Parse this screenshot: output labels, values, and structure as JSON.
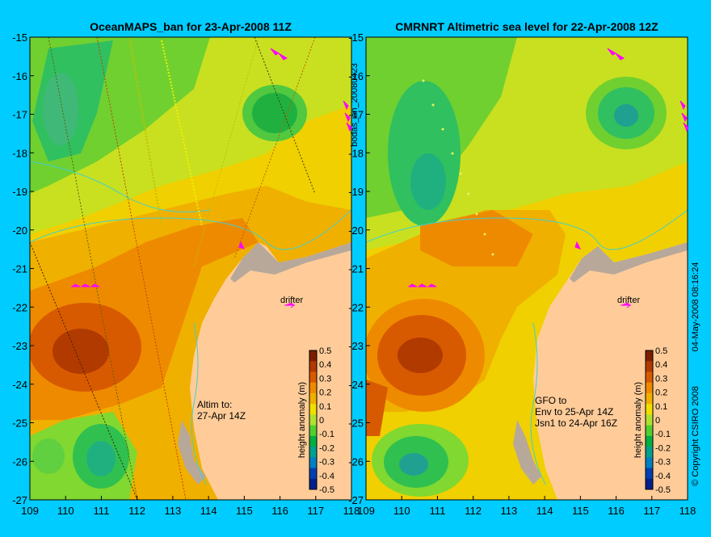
{
  "left_panel": {
    "title": "OceanMAPS_ban for 23-Apr-2008 11Z",
    "note_lines": [
      "Altim to:",
      "27-Apr 14Z"
    ],
    "drifter_label": "drifter"
  },
  "right_panel": {
    "title": "CMRNRT Altimetric sea level  for 22-Apr-2008 12Z",
    "note_lines": [
      "GFO to",
      "Env to 25-Apr 14Z",
      "Jsn1 to 24-Apr 16Z"
    ],
    "drifter_label": "drifter"
  },
  "axes": {
    "lon_ticks": [
      "109",
      "110",
      "111",
      "112",
      "113",
      "114",
      "115",
      "116",
      "117",
      "118"
    ],
    "lat_ticks": [
      "-15",
      "-16",
      "-17",
      "-18",
      "-19",
      "-20",
      "-21",
      "-22",
      "-23",
      "-24",
      "-25",
      "-26",
      "-27"
    ],
    "lon_range": [
      109,
      118
    ],
    "lat_range": [
      -27,
      -15
    ]
  },
  "colorbar": {
    "label": "height anomaly (m)",
    "ticks": [
      "0.5",
      "0.4",
      "0.3",
      "0.2",
      "0.1",
      "0",
      "-0.1",
      "-0.2",
      "-0.3",
      "-0.4",
      "-0.5"
    ],
    "range": [
      -0.5,
      0.5
    ],
    "colors": [
      "#7a1e00",
      "#b03a00",
      "#d85a00",
      "#ee8a00",
      "#f0b000",
      "#f0e000",
      "#b0e030",
      "#50d030",
      "#00b040",
      "#00a090",
      "#0080c0",
      "#0040b0",
      "#00208a"
    ]
  },
  "side_text": {
    "file_id": "bodas_an_20080423",
    "timestamp": "04-May-2008 08:16:24",
    "copyright": "© Copyright CSIRO 2008"
  },
  "colors": {
    "background": "#00ccff",
    "land": "#ffcc99",
    "shelf": "#b8a89a",
    "contour": "#40d0d0",
    "drifter_arrow": "#ff00ff"
  },
  "chart_data": {
    "type": "heatmap",
    "variable": "height anomaly (m)",
    "panels": [
      "OceanMAPS_ban for 23-Apr-2008 11Z",
      "CMRNRT Altimetric sea level  for 22-Apr-2008 12Z"
    ],
    "x_range_lon": [
      109,
      118
    ],
    "y_range_lat": [
      -27,
      -15
    ],
    "value_range": [
      -0.5,
      0.5
    ],
    "features": [
      {
        "lon": 110.4,
        "lat": -23.2,
        "value": 0.45
      },
      {
        "lon": 110.8,
        "lat": -16.8,
        "value": -0.15
      },
      {
        "lon": 116.0,
        "lat": -17.0,
        "value": -0.15
      },
      {
        "lon": 110.5,
        "lat": -26.0,
        "value": -0.15
      },
      {
        "lon": 114.0,
        "lat": -20.5,
        "value": 0.2
      }
    ]
  }
}
